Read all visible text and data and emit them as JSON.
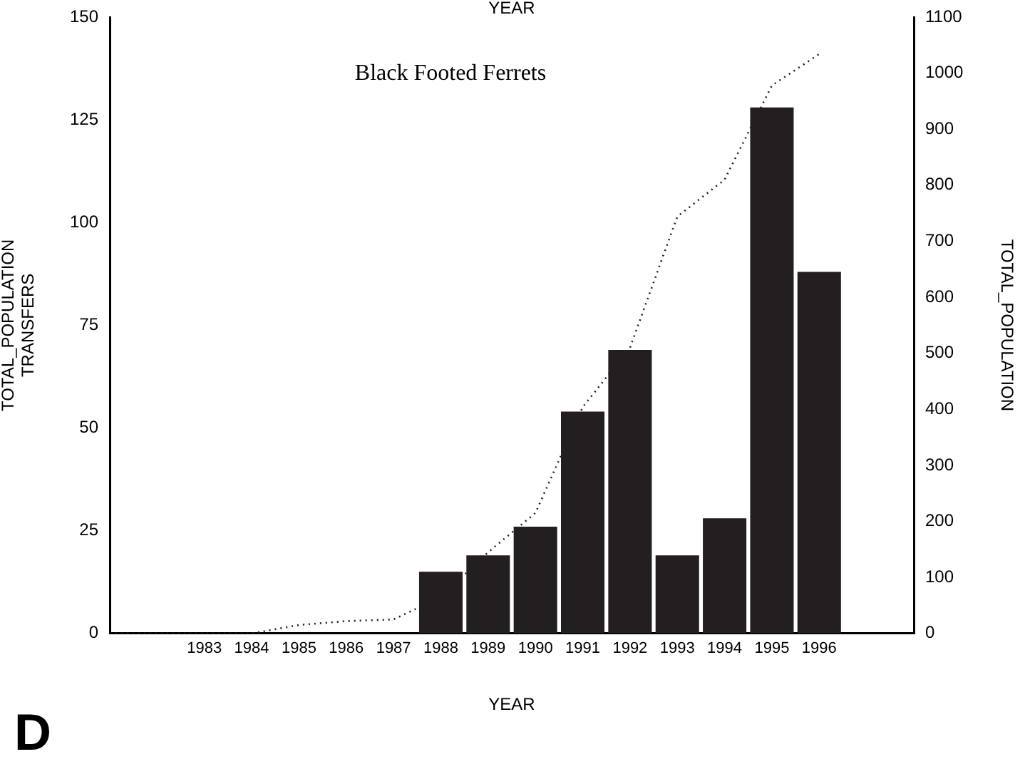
{
  "chart_data": {
    "type": "bar",
    "title": "Black Footed Ferrets",
    "xlabel": "YEAR",
    "x2label": "YEAR",
    "ylabel": "TRANSFERS",
    "y2label": "TOTAL_POPULATION",
    "annotations": [
      "TOTAL_POPULATION",
      "D"
    ],
    "categories": [
      null,
      null,
      "1983",
      "1984",
      "1985",
      "1986",
      "1987",
      "1988",
      "1989",
      "1990",
      "1991",
      "1992",
      "1993",
      "1994",
      "1995",
      "1996",
      null,
      null
    ],
    "series": [
      {
        "color": "#231f20",
        "values": [
          null,
          null,
          null,
          null,
          null,
          null,
          null,
          15,
          19,
          26,
          54,
          69,
          19,
          28,
          128,
          88,
          null,
          null
        ]
      },
      {
        "type": "line",
        "axis": "y2",
        "color": "#231f20",
        "line_style": "dotted",
        "marker": "none",
        "values": [
          0,
          0,
          0,
          0,
          15,
          22,
          25,
          65,
          145,
          215,
          404,
          510,
          744,
          810,
          978,
          1034,
          null,
          null
        ]
      }
    ],
    "ylim": [
      0,
      150
    ],
    "yticks": [
      0,
      25,
      50,
      75,
      100,
      125,
      150
    ],
    "y2lim": [
      0,
      1100
    ],
    "y2ticks": [
      0,
      100,
      200,
      300,
      400,
      500,
      600,
      700,
      800,
      900,
      1000,
      1100
    ],
    "grid": false,
    "legend": false
  }
}
